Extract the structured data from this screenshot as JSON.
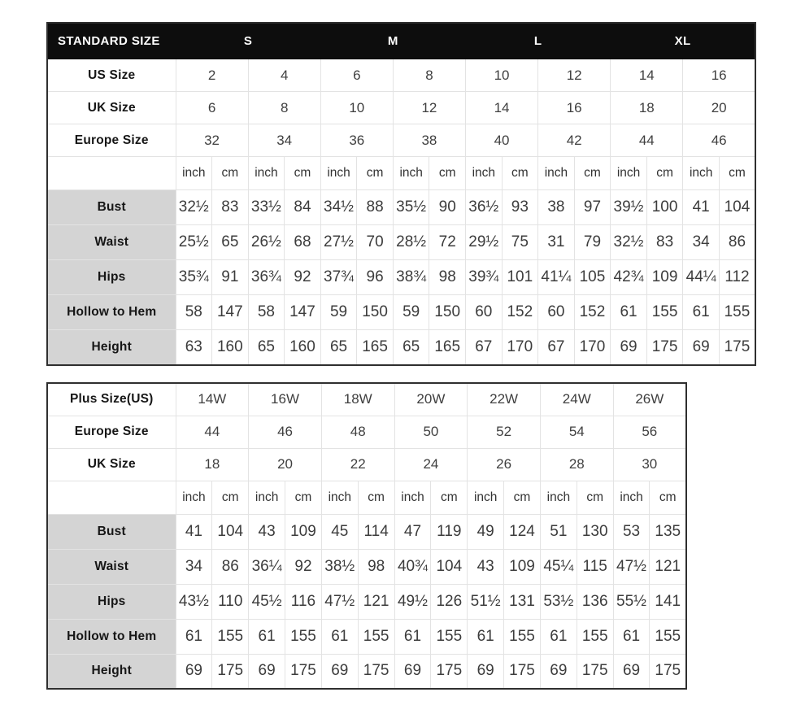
{
  "colors": {
    "header_bg": "#0d0d0d",
    "header_text": "#ffffff",
    "label_bg": "#d4d4d4",
    "grid_line": "#e3e3e3",
    "outer_border": "#2f2f2f",
    "value_text": "#3c3c3c"
  },
  "tables": [
    {
      "id": "standard-size",
      "title_cell": "STANDARD SIZE",
      "groups": [
        "S",
        "M",
        "L",
        "XL"
      ],
      "units": [
        "inch",
        "cm"
      ],
      "size_rows": [
        {
          "label": "US Size",
          "values": [
            "2",
            "4",
            "6",
            "8",
            "10",
            "12",
            "14",
            "16"
          ]
        },
        {
          "label": "UK Size",
          "values": [
            "6",
            "8",
            "10",
            "12",
            "14",
            "16",
            "18",
            "20"
          ]
        },
        {
          "label": "Europe Size",
          "values": [
            "32",
            "34",
            "36",
            "38",
            "40",
            "42",
            "44",
            "46"
          ]
        }
      ],
      "measure_rows": [
        {
          "label": "Bust",
          "values": [
            "32½",
            "83",
            "33½",
            "84",
            "34½",
            "88",
            "35½",
            "90",
            "36½",
            "93",
            "38",
            "97",
            "39½",
            "100",
            "41",
            "104"
          ]
        },
        {
          "label": "Waist",
          "values": [
            "25½",
            "65",
            "26½",
            "68",
            "27½",
            "70",
            "28½",
            "72",
            "29½",
            "75",
            "31",
            "79",
            "32½",
            "83",
            "34",
            "86"
          ]
        },
        {
          "label": "Hips",
          "values": [
            "35¾",
            "91",
            "36¾",
            "92",
            "37¾",
            "96",
            "38¾",
            "98",
            "39¾",
            "101",
            "41¼",
            "105",
            "42¾",
            "109",
            "44¼",
            "112"
          ]
        },
        {
          "label": "Hollow to Hem",
          "values": [
            "58",
            "147",
            "58",
            "147",
            "59",
            "150",
            "59",
            "150",
            "60",
            "152",
            "60",
            "152",
            "61",
            "155",
            "61",
            "155"
          ]
        },
        {
          "label": "Height",
          "values": [
            "63",
            "160",
            "65",
            "160",
            "65",
            "165",
            "65",
            "165",
            "67",
            "170",
            "67",
            "170",
            "69",
            "175",
            "69",
            "175"
          ]
        }
      ]
    },
    {
      "id": "plus-size",
      "units": [
        "inch",
        "cm"
      ],
      "size_rows": [
        {
          "label": "Plus Size(US)",
          "values": [
            "14W",
            "16W",
            "18W",
            "20W",
            "22W",
            "24W",
            "26W"
          ]
        },
        {
          "label": "Europe Size",
          "values": [
            "44",
            "46",
            "48",
            "50",
            "52",
            "54",
            "56"
          ]
        },
        {
          "label": "UK Size",
          "values": [
            "18",
            "20",
            "22",
            "24",
            "26",
            "28",
            "30"
          ]
        }
      ],
      "measure_rows": [
        {
          "label": "Bust",
          "values": [
            "41",
            "104",
            "43",
            "109",
            "45",
            "114",
            "47",
            "119",
            "49",
            "124",
            "51",
            "130",
            "53",
            "135"
          ]
        },
        {
          "label": "Waist",
          "values": [
            "34",
            "86",
            "36¼",
            "92",
            "38½",
            "98",
            "40¾",
            "104",
            "43",
            "109",
            "45¼",
            "115",
            "47½",
            "121"
          ]
        },
        {
          "label": "Hips",
          "values": [
            "43½",
            "110",
            "45½",
            "116",
            "47½",
            "121",
            "49½",
            "126",
            "51½",
            "131",
            "53½",
            "136",
            "55½",
            "141"
          ]
        },
        {
          "label": "Hollow to Hem",
          "values": [
            "61",
            "155",
            "61",
            "155",
            "61",
            "155",
            "61",
            "155",
            "61",
            "155",
            "61",
            "155",
            "61",
            "155"
          ]
        },
        {
          "label": "Height",
          "values": [
            "69",
            "175",
            "69",
            "175",
            "69",
            "175",
            "69",
            "175",
            "69",
            "175",
            "69",
            "175",
            "69",
            "175"
          ]
        }
      ]
    }
  ]
}
